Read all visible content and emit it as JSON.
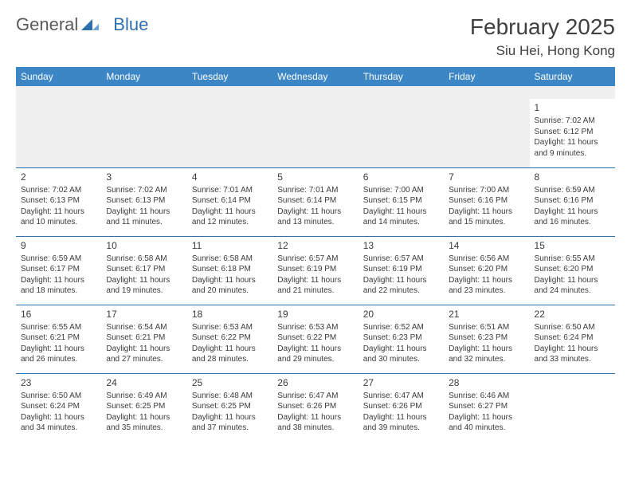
{
  "brand": {
    "part1": "General",
    "part2": "Blue"
  },
  "title": "February 2025",
  "location": "Siu Hei, Hong Kong",
  "colors": {
    "header_bg": "#3d86c6",
    "header_text": "#ffffff",
    "border": "#2f6fae",
    "blank_bg": "#f0f0f0",
    "text": "#3b3b3b"
  },
  "day_headers": [
    "Sunday",
    "Monday",
    "Tuesday",
    "Wednesday",
    "Thursday",
    "Friday",
    "Saturday"
  ],
  "weeks": [
    [
      null,
      null,
      null,
      null,
      null,
      null,
      {
        "n": "1",
        "sr": "7:02 AM",
        "ss": "6:12 PM",
        "dl": "11 hours and 9 minutes."
      }
    ],
    [
      {
        "n": "2",
        "sr": "7:02 AM",
        "ss": "6:13 PM",
        "dl": "11 hours and 10 minutes."
      },
      {
        "n": "3",
        "sr": "7:02 AM",
        "ss": "6:13 PM",
        "dl": "11 hours and 11 minutes."
      },
      {
        "n": "4",
        "sr": "7:01 AM",
        "ss": "6:14 PM",
        "dl": "11 hours and 12 minutes."
      },
      {
        "n": "5",
        "sr": "7:01 AM",
        "ss": "6:14 PM",
        "dl": "11 hours and 13 minutes."
      },
      {
        "n": "6",
        "sr": "7:00 AM",
        "ss": "6:15 PM",
        "dl": "11 hours and 14 minutes."
      },
      {
        "n": "7",
        "sr": "7:00 AM",
        "ss": "6:16 PM",
        "dl": "11 hours and 15 minutes."
      },
      {
        "n": "8",
        "sr": "6:59 AM",
        "ss": "6:16 PM",
        "dl": "11 hours and 16 minutes."
      }
    ],
    [
      {
        "n": "9",
        "sr": "6:59 AM",
        "ss": "6:17 PM",
        "dl": "11 hours and 18 minutes."
      },
      {
        "n": "10",
        "sr": "6:58 AM",
        "ss": "6:17 PM",
        "dl": "11 hours and 19 minutes."
      },
      {
        "n": "11",
        "sr": "6:58 AM",
        "ss": "6:18 PM",
        "dl": "11 hours and 20 minutes."
      },
      {
        "n": "12",
        "sr": "6:57 AM",
        "ss": "6:19 PM",
        "dl": "11 hours and 21 minutes."
      },
      {
        "n": "13",
        "sr": "6:57 AM",
        "ss": "6:19 PM",
        "dl": "11 hours and 22 minutes."
      },
      {
        "n": "14",
        "sr": "6:56 AM",
        "ss": "6:20 PM",
        "dl": "11 hours and 23 minutes."
      },
      {
        "n": "15",
        "sr": "6:55 AM",
        "ss": "6:20 PM",
        "dl": "11 hours and 24 minutes."
      }
    ],
    [
      {
        "n": "16",
        "sr": "6:55 AM",
        "ss": "6:21 PM",
        "dl": "11 hours and 26 minutes."
      },
      {
        "n": "17",
        "sr": "6:54 AM",
        "ss": "6:21 PM",
        "dl": "11 hours and 27 minutes."
      },
      {
        "n": "18",
        "sr": "6:53 AM",
        "ss": "6:22 PM",
        "dl": "11 hours and 28 minutes."
      },
      {
        "n": "19",
        "sr": "6:53 AM",
        "ss": "6:22 PM",
        "dl": "11 hours and 29 minutes."
      },
      {
        "n": "20",
        "sr": "6:52 AM",
        "ss": "6:23 PM",
        "dl": "11 hours and 30 minutes."
      },
      {
        "n": "21",
        "sr": "6:51 AM",
        "ss": "6:23 PM",
        "dl": "11 hours and 32 minutes."
      },
      {
        "n": "22",
        "sr": "6:50 AM",
        "ss": "6:24 PM",
        "dl": "11 hours and 33 minutes."
      }
    ],
    [
      {
        "n": "23",
        "sr": "6:50 AM",
        "ss": "6:24 PM",
        "dl": "11 hours and 34 minutes."
      },
      {
        "n": "24",
        "sr": "6:49 AM",
        "ss": "6:25 PM",
        "dl": "11 hours and 35 minutes."
      },
      {
        "n": "25",
        "sr": "6:48 AM",
        "ss": "6:25 PM",
        "dl": "11 hours and 37 minutes."
      },
      {
        "n": "26",
        "sr": "6:47 AM",
        "ss": "6:26 PM",
        "dl": "11 hours and 38 minutes."
      },
      {
        "n": "27",
        "sr": "6:47 AM",
        "ss": "6:26 PM",
        "dl": "11 hours and 39 minutes."
      },
      {
        "n": "28",
        "sr": "6:46 AM",
        "ss": "6:27 PM",
        "dl": "11 hours and 40 minutes."
      },
      null
    ]
  ],
  "labels": {
    "sunrise": "Sunrise:",
    "sunset": "Sunset:",
    "daylight": "Daylight:"
  }
}
